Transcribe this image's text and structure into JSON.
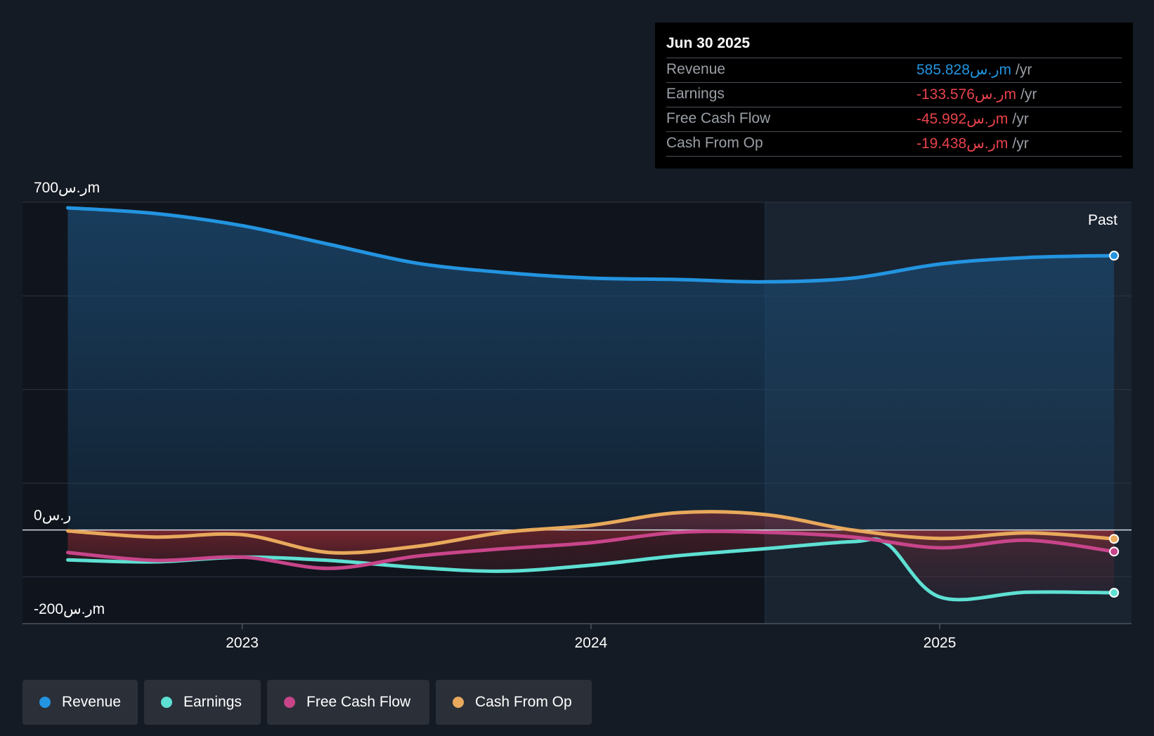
{
  "tooltip": {
    "date": "Jun 30 2025",
    "rows": [
      {
        "label": "Revenue",
        "value": "585.828ر.سm",
        "unit": "/yr",
        "color": "#2394e0"
      },
      {
        "label": "Earnings",
        "value": "-133.576ر.سm",
        "unit": "/yr",
        "color": "#e8424c"
      },
      {
        "label": "Free Cash Flow",
        "value": "-45.992ر.سm",
        "unit": "/yr",
        "color": "#e8424c"
      },
      {
        "label": "Cash From Op",
        "value": "-19.438ر.سm",
        "unit": "/yr",
        "color": "#e8424c"
      }
    ]
  },
  "legend": [
    {
      "label": "Revenue",
      "color": "#2394e0"
    },
    {
      "label": "Earnings",
      "color": "#5ee0d3"
    },
    {
      "label": "Free Cash Flow",
      "color": "#c8458a"
    },
    {
      "label": "Cash From Op",
      "color": "#e8a95c"
    }
  ],
  "chart_data": {
    "type": "area",
    "title": "",
    "xlabel": "",
    "ylabel": "",
    "ylim": [
      -200,
      700
    ],
    "y_tick_labels": [
      {
        "value": 700,
        "label": "700ر.سm"
      },
      {
        "value": 0,
        "label": "0ر.س"
      },
      {
        "value": -200,
        "label": "-200ر.سm"
      }
    ],
    "x_tick_labels": [
      {
        "value": 2023.0,
        "label": "2023"
      },
      {
        "value": 2024.0,
        "label": "2024"
      },
      {
        "value": 2025.0,
        "label": "2025"
      }
    ],
    "xlim": [
      2022.37,
      2025.55
    ],
    "past_label": "Past",
    "past_from": 2024.5,
    "series": [
      {
        "name": "Revenue",
        "color": "#2394e0",
        "x": [
          2022.5,
          2022.75,
          2023.0,
          2023.25,
          2023.5,
          2023.75,
          2024.0,
          2024.25,
          2024.5,
          2024.75,
          2025.0,
          2025.25,
          2025.5
        ],
        "y": [
          688,
          676,
          650,
          610,
          570,
          550,
          538,
          535,
          530,
          538,
          568,
          582,
          586
        ]
      },
      {
        "name": "Earnings",
        "color": "#5ee0d3",
        "x": [
          2022.5,
          2022.75,
          2023.0,
          2023.25,
          2023.5,
          2023.75,
          2024.0,
          2024.25,
          2024.5,
          2024.75,
          2024.85,
          2025.0,
          2025.25,
          2025.5
        ],
        "y": [
          -64,
          -68,
          -58,
          -65,
          -80,
          -88,
          -75,
          -55,
          -40,
          -25,
          -30,
          -143,
          -133,
          -134
        ]
      },
      {
        "name": "Free Cash Flow",
        "color": "#c8458a",
        "x": [
          2022.5,
          2022.75,
          2023.0,
          2023.25,
          2023.5,
          2023.75,
          2024.0,
          2024.25,
          2024.5,
          2024.75,
          2025.0,
          2025.25,
          2025.5
        ],
        "y": [
          -48,
          -65,
          -58,
          -82,
          -56,
          -40,
          -27,
          -5,
          -5,
          -15,
          -38,
          -22,
          -46
        ]
      },
      {
        "name": "Cash From Op",
        "color": "#e8a95c",
        "x": [
          2022.5,
          2022.75,
          2023.0,
          2023.25,
          2023.5,
          2023.75,
          2024.0,
          2024.25,
          2024.5,
          2024.75,
          2025.0,
          2025.25,
          2025.5
        ],
        "y": [
          -2,
          -15,
          -10,
          -48,
          -35,
          -5,
          10,
          37,
          33,
          0,
          -18,
          -6,
          -19
        ]
      }
    ]
  }
}
